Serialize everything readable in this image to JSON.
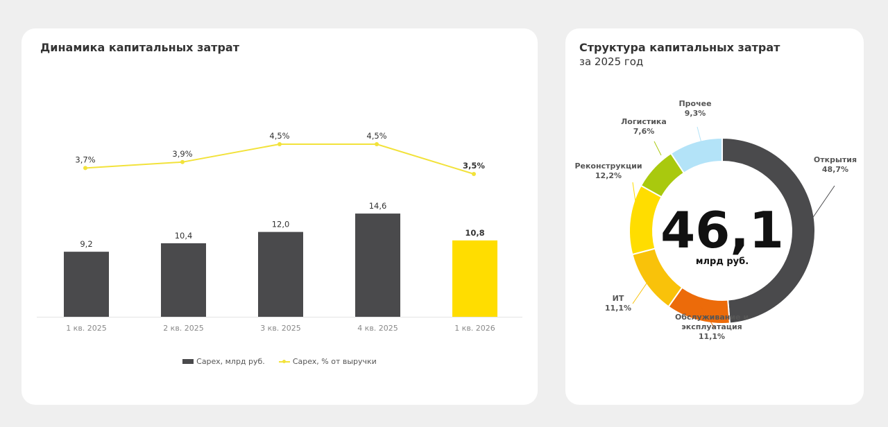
{
  "left_card": {
    "title": "Динамика капитальных затрат"
  },
  "right_card": {
    "title": "Структура капитальных затрат",
    "subtitle": "за 2025 год"
  },
  "chart_data": [
    {
      "type": "bar",
      "title": "Динамика капитальных затрат",
      "categories": [
        "1 кв. 2025",
        "2 кв. 2025",
        "3 кв. 2025",
        "4 кв. 2025",
        "1 кв. 2026"
      ],
      "series": [
        {
          "name": "Capex, млрд руб.",
          "kind": "bar",
          "values": [
            9.2,
            10.4,
            12.0,
            14.6,
            10.8
          ],
          "labels": [
            "9,2",
            "10,4",
            "12,0",
            "14,6",
            "10,8"
          ],
          "color": "#4a4a4c",
          "highlight_color": "#ffdd00",
          "highlight_index": 4
        },
        {
          "name": "Capex, % от выручки",
          "kind": "line",
          "values": [
            3.7,
            3.9,
            4.5,
            4.5,
            3.5
          ],
          "labels": [
            "3,7%",
            "3,9%",
            "4,5%",
            "4,5%",
            "3,5%"
          ],
          "color": "#f2e23a"
        }
      ],
      "legend_position": "bottom",
      "grid": false
    },
    {
      "type": "pie",
      "title": "Структура капитальных затрат",
      "subtitle": "за 2025 год",
      "center_value": "46,1",
      "center_unit": "млрд руб.",
      "slices": [
        {
          "name": "Открытия",
          "value": 48.7,
          "label": "48,7%",
          "color": "#4a4a4c"
        },
        {
          "name": "Обслуживание и эксплуатация",
          "name_lines": [
            "Обслуживание и",
            "эксплуатация"
          ],
          "value": 11.1,
          "label": "11,1%",
          "color": "#ec6b0a"
        },
        {
          "name": "ИТ",
          "value": 11.1,
          "label": "11,1%",
          "color": "#f9c20a"
        },
        {
          "name": "Реконструкции",
          "value": 12.2,
          "label": "12,2%",
          "color": "#ffdd00"
        },
        {
          "name": "Логистика",
          "value": 7.6,
          "label": "7,6%",
          "color": "#a9c90e"
        },
        {
          "name": "Прочее",
          "value": 9.3,
          "label": "9,3%",
          "color": "#b3e3f8"
        }
      ]
    }
  ]
}
